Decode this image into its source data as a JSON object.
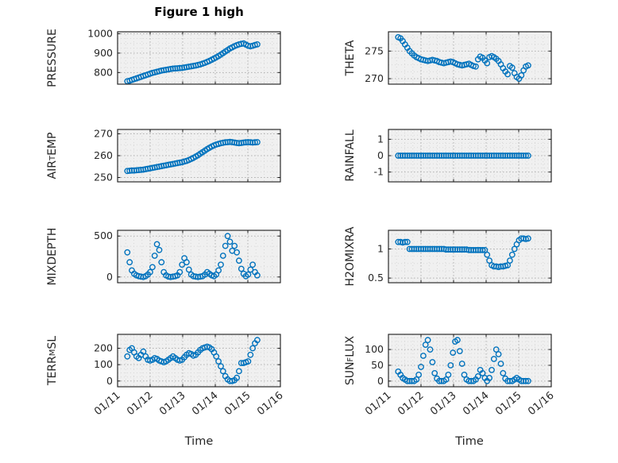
{
  "title": "Figure 1 high",
  "xlabel": "Time",
  "x_tick_labels": [
    "01/11",
    "01/12",
    "01/13",
    "01/14",
    "01/15",
    "01/16"
  ],
  "style": {
    "marker_color": "#0072BD",
    "axes_bg": "#f0f0f0",
    "grid_major": "#b3b3b3",
    "grid_minor": "#d8d8d8",
    "axis_color": "#1a1a1a",
    "text_color": "#262626"
  },
  "x_days": [
    0.3,
    0.37,
    0.44,
    0.51,
    0.58,
    0.65,
    0.72,
    0.79,
    0.86,
    0.93,
    1.0,
    1.07,
    1.14,
    1.21,
    1.28,
    1.35,
    1.42,
    1.49,
    1.56,
    1.63,
    1.7,
    1.77,
    1.84,
    1.91,
    1.98,
    2.05,
    2.12,
    2.19,
    2.26,
    2.33,
    2.4,
    2.47,
    2.54,
    2.61,
    2.68,
    2.75,
    2.82,
    2.89,
    2.96,
    3.03,
    3.1,
    3.17,
    3.24,
    3.31,
    3.38,
    3.45,
    3.52,
    3.59,
    3.66,
    3.73,
    3.8,
    3.87,
    3.94,
    4.01,
    4.08,
    4.15,
    4.22,
    4.29
  ],
  "chart_data": [
    {
      "name": "pressure",
      "type": "scatter",
      "marker": "open-circle",
      "ylabel_parts": [
        {
          "t": "PRESSURE"
        }
      ],
      "ylim": [
        740,
        1010
      ],
      "yticks": [
        800,
        900,
        1000
      ],
      "xlim": [
        0,
        5
      ],
      "xticks": [
        0,
        1,
        2,
        3,
        4,
        5
      ],
      "y": [
        755,
        758,
        762,
        766,
        770,
        774,
        778,
        782,
        786,
        790,
        794,
        798,
        801,
        804,
        807,
        810,
        812,
        814,
        816,
        818,
        820,
        821,
        822,
        823,
        824,
        826,
        828,
        830,
        832,
        834,
        836,
        839,
        842,
        846,
        850,
        855,
        860,
        866,
        872,
        878,
        885,
        892,
        900,
        908,
        916,
        924,
        930,
        936,
        941,
        945,
        948,
        950,
        944,
        938,
        935,
        938,
        942,
        945
      ]
    },
    {
      "name": "air-temp",
      "type": "scatter",
      "marker": "open-circle",
      "ylabel_parts": [
        {
          "t": "AIR"
        },
        {
          "t": "T",
          "sub": true
        },
        {
          "t": "EMP"
        }
      ],
      "ylim": [
        248,
        272
      ],
      "yticks": [
        250,
        260,
        270
      ],
      "xlim": [
        0,
        5
      ],
      "xticks": [
        0,
        1,
        2,
        3,
        4,
        5
      ],
      "y": [
        253.0,
        253.1,
        253.2,
        253.2,
        253.3,
        253.4,
        253.5,
        253.6,
        253.8,
        254.0,
        254.2,
        254.4,
        254.6,
        254.8,
        255.0,
        255.2,
        255.4,
        255.6,
        255.8,
        256.0,
        256.2,
        256.4,
        256.6,
        256.8,
        257.0,
        257.3,
        257.6,
        258.0,
        258.5,
        259.0,
        259.6,
        260.2,
        260.9,
        261.6,
        262.3,
        263.0,
        263.6,
        264.2,
        264.7,
        265.1,
        265.4,
        265.7,
        265.9,
        266.1,
        266.2,
        266.3,
        266.2,
        266.0,
        265.8,
        265.7,
        265.8,
        266.0,
        266.1,
        266.2,
        266.1,
        266.0,
        266.1,
        266.2
      ]
    },
    {
      "name": "mixdepth",
      "type": "scatter",
      "marker": "open-circle",
      "ylabel_parts": [
        {
          "t": "MIXDEPTH"
        }
      ],
      "ylim": [
        -70,
        570
      ],
      "yticks": [
        0,
        500
      ],
      "xlim": [
        0,
        5
      ],
      "xticks": [
        0,
        1,
        2,
        3,
        4,
        5
      ],
      "y": [
        300,
        180,
        80,
        40,
        20,
        10,
        5,
        0,
        10,
        30,
        60,
        120,
        260,
        400,
        330,
        180,
        60,
        20,
        5,
        0,
        5,
        10,
        20,
        60,
        150,
        230,
        180,
        90,
        30,
        10,
        5,
        0,
        5,
        10,
        30,
        60,
        40,
        20,
        10,
        30,
        80,
        150,
        260,
        380,
        500,
        430,
        320,
        380,
        300,
        200,
        100,
        40,
        10,
        30,
        90,
        150,
        60,
        20
      ]
    },
    {
      "name": "terr-msl",
      "type": "scatter",
      "marker": "open-circle",
      "ylabel_parts": [
        {
          "t": "TERR"
        },
        {
          "t": "M",
          "sub": true
        },
        {
          "t": "SL"
        }
      ],
      "ylim": [
        -35,
        285
      ],
      "yticks": [
        0,
        100,
        200
      ],
      "xlim": [
        0,
        5
      ],
      "xticks": [
        0,
        1,
        2,
        3,
        4,
        5
      ],
      "y": [
        150,
        190,
        200,
        175,
        150,
        140,
        160,
        180,
        150,
        130,
        125,
        130,
        140,
        135,
        125,
        120,
        115,
        120,
        130,
        140,
        150,
        140,
        130,
        125,
        130,
        145,
        160,
        170,
        165,
        155,
        160,
        175,
        190,
        200,
        205,
        210,
        205,
        195,
        175,
        150,
        120,
        90,
        60,
        30,
        10,
        0,
        0,
        5,
        20,
        60,
        110,
        110,
        115,
        120,
        160,
        200,
        230,
        250
      ]
    },
    {
      "name": "theta",
      "type": "scatter",
      "marker": "open-circle",
      "ylabel_parts": [
        {
          "t": "THETA"
        }
      ],
      "ylim": [
        269,
        278.5
      ],
      "yticks": [
        270,
        275
      ],
      "xlim": [
        0,
        5
      ],
      "xticks": [
        0,
        1,
        2,
        3,
        4,
        5
      ],
      "y": [
        277.5,
        277.3,
        276.8,
        276.2,
        275.6,
        275.0,
        274.6,
        274.2,
        273.9,
        273.7,
        273.5,
        273.4,
        273.3,
        273.2,
        273.3,
        273.4,
        273.3,
        273.2,
        273.0,
        272.9,
        272.8,
        272.9,
        273.0,
        273.1,
        273.0,
        272.8,
        272.6,
        272.5,
        272.4,
        272.5,
        272.6,
        272.7,
        272.5,
        272.3,
        272.2,
        273.5,
        274.0,
        273.8,
        273.3,
        272.8,
        273.9,
        274.1,
        273.9,
        273.6,
        273.2,
        272.6,
        271.9,
        271.3,
        270.8,
        272.3,
        272.0,
        271.0,
        270.3,
        270.0,
        270.6,
        271.5,
        272.2,
        272.4
      ]
    },
    {
      "name": "rainfall",
      "type": "scatter",
      "marker": "open-circle",
      "ylabel_parts": [
        {
          "t": "RAINFALL"
        }
      ],
      "ylim": [
        -1.6,
        1.6
      ],
      "yticks": [
        -1,
        0,
        1
      ],
      "xlim": [
        0,
        5
      ],
      "xticks": [
        0,
        1,
        2,
        3,
        4,
        5
      ],
      "y": [
        0,
        0,
        0,
        0,
        0,
        0,
        0,
        0,
        0,
        0,
        0,
        0,
        0,
        0,
        0,
        0,
        0,
        0,
        0,
        0,
        0,
        0,
        0,
        0,
        0,
        0,
        0,
        0,
        0,
        0,
        0,
        0,
        0,
        0,
        0,
        0,
        0,
        0,
        0,
        0,
        0,
        0,
        0,
        0,
        0,
        0,
        0,
        0,
        0,
        0,
        0,
        0,
        0,
        0,
        0,
        0,
        0,
        0
      ]
    },
    {
      "name": "h2omixra",
      "type": "scatter",
      "marker": "open-circle",
      "ylabel_parts": [
        {
          "t": "H2OMIXRA"
        }
      ],
      "ylim": [
        0.42,
        1.32
      ],
      "yticks": [
        0.5,
        1
      ],
      "xlim": [
        0,
        5
      ],
      "xticks": [
        0,
        1,
        2,
        3,
        4,
        5
      ],
      "y": [
        1.12,
        1.12,
        1.11,
        1.12,
        1.12,
        1.0,
        1.0,
        1.0,
        1.0,
        1.0,
        1.0,
        1.0,
        1.0,
        1.0,
        1.0,
        1.0,
        1.0,
        1.0,
        1.0,
        1.0,
        1.0,
        0.99,
        0.99,
        0.99,
        0.99,
        0.99,
        0.99,
        0.99,
        0.99,
        0.99,
        0.99,
        0.98,
        0.98,
        0.98,
        0.98,
        0.98,
        0.98,
        0.98,
        0.98,
        0.9,
        0.8,
        0.72,
        0.7,
        0.7,
        0.69,
        0.7,
        0.7,
        0.71,
        0.72,
        0.8,
        0.9,
        1.0,
        1.08,
        1.15,
        1.18,
        1.18,
        1.17,
        1.18
      ]
    },
    {
      "name": "sun-flux",
      "type": "scatter",
      "marker": "open-circle",
      "ylabel_parts": [
        {
          "t": "SUN"
        },
        {
          "t": "F",
          "sub": true
        },
        {
          "t": "LUX"
        }
      ],
      "ylim": [
        -18,
        148
      ],
      "yticks": [
        0,
        50,
        100
      ],
      "xlim": [
        0,
        5
      ],
      "xticks": [
        0,
        1,
        2,
        3,
        4,
        5
      ],
      "y": [
        30,
        20,
        10,
        5,
        0,
        0,
        0,
        0,
        5,
        20,
        45,
        80,
        115,
        130,
        100,
        60,
        25,
        8,
        0,
        0,
        0,
        5,
        20,
        50,
        90,
        125,
        130,
        95,
        55,
        20,
        5,
        0,
        0,
        0,
        5,
        15,
        35,
        25,
        10,
        0,
        10,
        35,
        70,
        100,
        85,
        55,
        25,
        8,
        0,
        0,
        0,
        5,
        10,
        5,
        0,
        0,
        0,
        0
      ]
    }
  ]
}
